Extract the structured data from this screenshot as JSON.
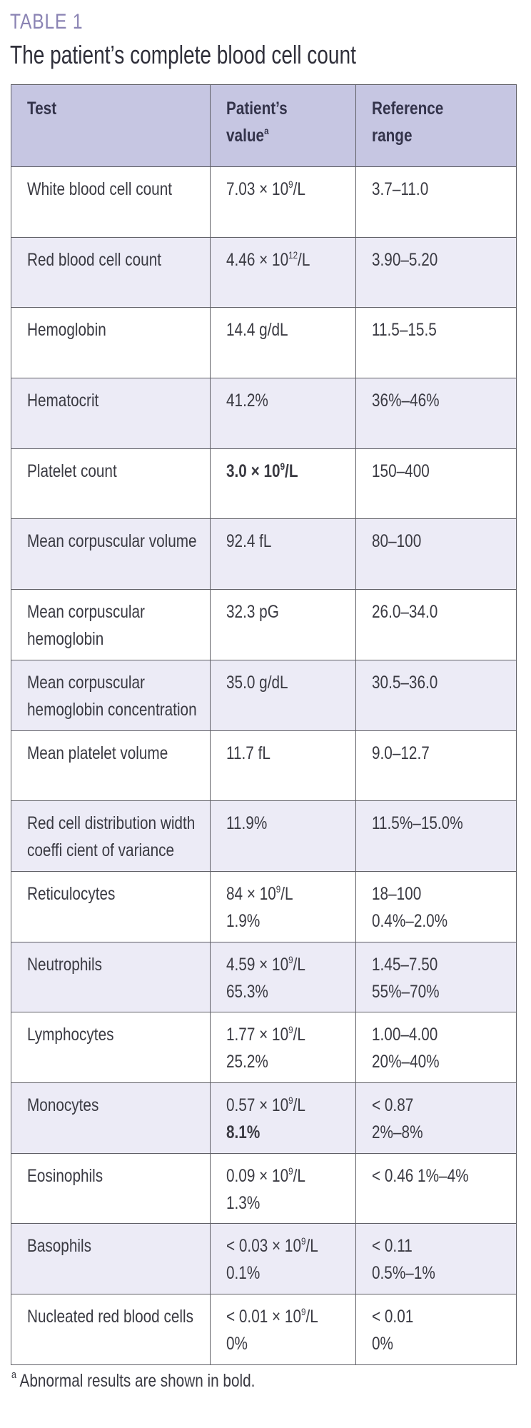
{
  "table_label": "TABLE 1",
  "title": "The patient’s complete blood cell count",
  "headers": {
    "test": "Test",
    "value_line1": "Patient’s",
    "value_line2": "value",
    "value_sup": "a",
    "ref_line1": "Reference",
    "ref_line2": "range"
  },
  "rows": [
    {
      "test": [
        "White blood cell count"
      ],
      "value": [
        {
          "pre": "7.03 × 10",
          "sup": "9",
          "post": "/L"
        }
      ],
      "ref": [
        "3.7–11.0"
      ]
    },
    {
      "test": [
        "Red blood cell count"
      ],
      "value": [
        {
          "pre": "4.46 × 10",
          "sup": "12",
          "post": "/L"
        }
      ],
      "ref": [
        "3.90–5.20"
      ]
    },
    {
      "test": [
        "Hemoglobin"
      ],
      "value": [
        {
          "pre": "14.4 g/dL"
        }
      ],
      "ref": [
        "11.5–15.5"
      ]
    },
    {
      "test": [
        "Hematocrit"
      ],
      "value": [
        {
          "pre": "41.2%"
        }
      ],
      "ref": [
        "36%–46%"
      ]
    },
    {
      "test": [
        "Platelet count"
      ],
      "value": [
        {
          "pre": "3.0 × 10",
          "sup": "9",
          "post": "/L",
          "bold": true
        }
      ],
      "ref": [
        "150–400"
      ]
    },
    {
      "test": [
        "Mean corpuscular volume"
      ],
      "value": [
        {
          "pre": "92.4 fL"
        }
      ],
      "ref": [
        "80–100"
      ]
    },
    {
      "test": [
        "Mean corpuscular",
        "hemoglobin"
      ],
      "value": [
        {
          "pre": "32.3 pG"
        }
      ],
      "ref": [
        "26.0–34.0"
      ]
    },
    {
      "test": [
        "Mean corpuscular",
        "hemoglobin concentration"
      ],
      "value": [
        {
          "pre": "35.0 g/dL"
        }
      ],
      "ref": [
        "30.5–36.0"
      ]
    },
    {
      "test": [
        "Mean platelet volume"
      ],
      "value": [
        {
          "pre": "11.7 fL"
        }
      ],
      "ref": [
        "9.0–12.7"
      ]
    },
    {
      "test": [
        "Red cell distribution width",
        "coeffi cient of variance"
      ],
      "value": [
        {
          "pre": "11.9%"
        }
      ],
      "ref": [
        "11.5%–15.0%"
      ]
    },
    {
      "test": [
        "Reticulocytes"
      ],
      "value": [
        {
          "pre": "84 × 10",
          "sup": "9",
          "post": "/L"
        },
        {
          "pre": "1.9%"
        }
      ],
      "ref": [
        "18–100",
        "0.4%–2.0%"
      ]
    },
    {
      "test": [
        "Neutrophils"
      ],
      "value": [
        {
          "pre": "4.59 × 10",
          "sup": "9",
          "post": "/L"
        },
        {
          "pre": "65.3%"
        }
      ],
      "ref": [
        "1.45–7.50",
        "55%–70%"
      ]
    },
    {
      "test": [
        "Lymphocytes"
      ],
      "value": [
        {
          "pre": "1.77 × 10",
          "sup": "9",
          "post": "/L"
        },
        {
          "pre": "25.2%"
        }
      ],
      "ref": [
        "1.00–4.00",
        "20%–40%"
      ]
    },
    {
      "test": [
        "Monocytes"
      ],
      "value": [
        {
          "pre": "0.57 × 10",
          "sup": "9",
          "post": "/L"
        },
        {
          "pre": "8.1%",
          "bold": true
        }
      ],
      "ref": [
        "< 0.87",
        "2%–8%"
      ]
    },
    {
      "test": [
        "Eosinophils"
      ],
      "value": [
        {
          "pre": "0.09 × 10",
          "sup": "9",
          "post": "/L"
        },
        {
          "pre": "1.3%"
        }
      ],
      "ref": [
        "< 0.46 1%–4%"
      ]
    },
    {
      "test": [
        "Basophils"
      ],
      "value": [
        {
          "pre": "< 0.03 × 10",
          "sup": "9",
          "post": "/L"
        },
        {
          "pre": "0.1%"
        }
      ],
      "ref": [
        "< 0.11",
        "0.5%–1%"
      ]
    },
    {
      "test": [
        "Nucleated red blood cells"
      ],
      "value": [
        {
          "pre": "< 0.01 × 10",
          "sup": "9",
          "post": "/L"
        },
        {
          "pre": "0%"
        }
      ],
      "ref": [
        "< 0.01",
        "0%"
      ]
    }
  ],
  "footnote": {
    "mark": "a",
    "text": " Abnormal results are shown in bold."
  }
}
